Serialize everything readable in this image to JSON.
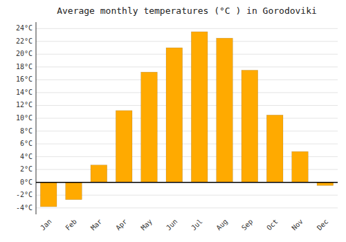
{
  "chart_data": {
    "type": "bar",
    "title": "Average monthly temperatures (°C ) in Gorodoviki",
    "categories": [
      "Jan",
      "Feb",
      "Mar",
      "Apr",
      "May",
      "Jun",
      "Jul",
      "Aug",
      "Sep",
      "Oct",
      "Nov",
      "Dec"
    ],
    "values": [
      -3.8,
      -2.7,
      2.7,
      11.2,
      17.2,
      21.0,
      23.5,
      22.5,
      17.5,
      10.5,
      4.8,
      -0.5
    ],
    "color": "#FFAA00",
    "ylim": [
      -5,
      25
    ],
    "yticks": [
      {
        "value": -4,
        "label": "-4°C"
      },
      {
        "value": -2,
        "label": "-2°C"
      },
      {
        "value": 0,
        "label": "0°C"
      },
      {
        "value": 2,
        "label": "2°C"
      },
      {
        "value": 4,
        "label": "4°C"
      },
      {
        "value": 6,
        "label": "6°C"
      },
      {
        "value": 8,
        "label": "8°C"
      },
      {
        "value": 10,
        "label": "10°C"
      },
      {
        "value": 12,
        "label": "12°C"
      },
      {
        "value": 14,
        "label": "14°C"
      },
      {
        "value": 16,
        "label": "16°C"
      },
      {
        "value": 18,
        "label": "18°C"
      },
      {
        "value": 20,
        "label": "20°C"
      },
      {
        "value": 22,
        "label": "22°C"
      },
      {
        "value": 24,
        "label": "24°C"
      }
    ],
    "grid": true
  }
}
